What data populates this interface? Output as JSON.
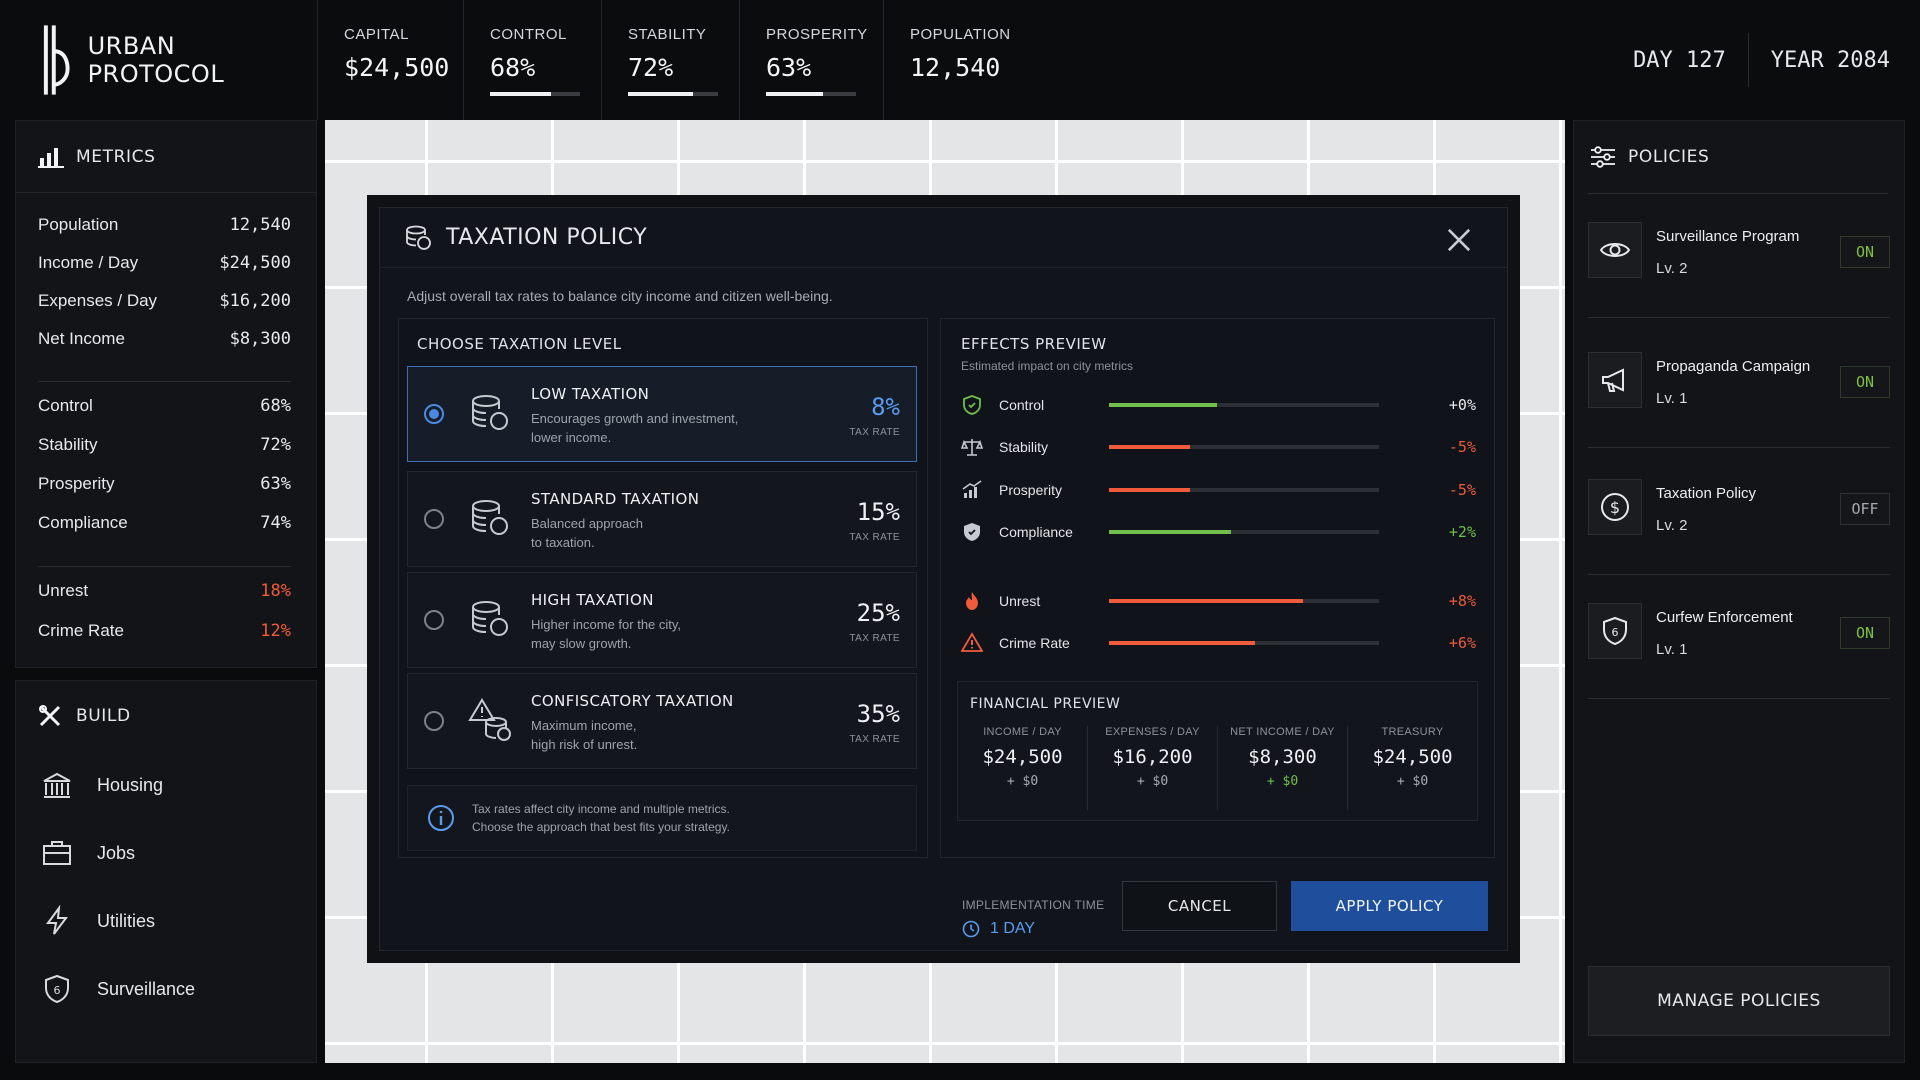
{
  "app": {
    "title": "URBAN PROTOCOL",
    "logo_icon": "city-logo-icon"
  },
  "topbar": {
    "stats": [
      {
        "label": "CAPITAL",
        "value": "$24,500"
      },
      {
        "label": "CONTROL",
        "value": "68%",
        "level": 0.68
      },
      {
        "label": "STABILITY",
        "value": "72%",
        "level": 0.72
      },
      {
        "label": "PROSPERITY",
        "value": "63%",
        "level": 0.63
      },
      {
        "label": "POPULATION",
        "value": "12,540"
      }
    ],
    "day": "DAY 127",
    "year": "YEAR 2084"
  },
  "metrics": {
    "title": "METRICS",
    "group1": [
      {
        "label": "Population",
        "value": "12,540"
      },
      {
        "label": "Income / Day",
        "value": "$24,500"
      },
      {
        "label": "Expenses / Day",
        "value": "$16,200"
      },
      {
        "label": "Net Income",
        "value": "$8,300"
      }
    ],
    "group2": [
      {
        "label": "Control",
        "value": "68%"
      },
      {
        "label": "Stability",
        "value": "72%"
      },
      {
        "label": "Prosperity",
        "value": "63%"
      },
      {
        "label": "Compliance",
        "value": "74%"
      }
    ],
    "group3": [
      {
        "label": "Unrest",
        "value": "18%"
      },
      {
        "label": "Crime Rate",
        "value": "12%"
      }
    ]
  },
  "build": {
    "title": "BUILD",
    "items": [
      {
        "label": "Housing",
        "icon": "building-icon"
      },
      {
        "label": "Jobs",
        "icon": "briefcase-icon"
      },
      {
        "label": "Utilities",
        "icon": "lightning-icon"
      },
      {
        "label": "Surveillance",
        "icon": "shield-icon"
      }
    ]
  },
  "modal": {
    "title": "TAXATION POLICY",
    "subtitle": "Adjust overall tax rates to balance city income and citizen well-being.",
    "choose_title": "CHOOSE TAXATION LEVEL",
    "options": [
      {
        "name": "LOW TAXATION",
        "desc1": "Encourages growth and investment,",
        "desc2": "lower income.",
        "rate": "8%",
        "rate_label": "TAX RATE",
        "selected": true
      },
      {
        "name": "STANDARD TAXATION",
        "desc1": "Balanced approach",
        "desc2": "to taxation.",
        "rate": "15%",
        "rate_label": "TAX RATE",
        "selected": false
      },
      {
        "name": "HIGH TAXATION",
        "desc1": "Higher income for the city,",
        "desc2": "may slow growth.",
        "rate": "25%",
        "rate_label": "TAX RATE",
        "selected": false
      },
      {
        "name": "CONFISCATORY TAXATION",
        "desc1": "Maximum income,",
        "desc2": "high risk of unrest.",
        "rate": "35%",
        "rate_label": "TAX RATE",
        "selected": false
      }
    ],
    "info1": "Tax rates affect city income and multiple metrics.",
    "info2": "Choose the approach that best fits your strategy.",
    "effects_title": "EFFECTS PREVIEW",
    "effects_sub": "Estimated impact on city metrics",
    "effects": [
      {
        "name": "Control",
        "delta": "+0%",
        "level": 0.4,
        "color": "#6fbf4a",
        "delta_color": "#e6e8eb",
        "icon": "shield-check-icon"
      },
      {
        "name": "Stability",
        "delta": "-5%",
        "level": 0.3,
        "color": "#ef5b3b",
        "delta_color": "#ef5b3b",
        "icon": "scales-icon"
      },
      {
        "name": "Prosperity",
        "delta": "-5%",
        "level": 0.3,
        "color": "#ef5b3b",
        "delta_color": "#ef5b3b",
        "icon": "chart-up-icon"
      },
      {
        "name": "Compliance",
        "delta": "+2%",
        "level": 0.45,
        "color": "#6fbf4a",
        "delta_color": "#6fbf4a",
        "icon": "shield-filled-icon"
      },
      {
        "name": "Unrest",
        "delta": "+8%",
        "level": 0.72,
        "color": "#ef5b3b",
        "delta_color": "#ef5b3b",
        "icon": "fire-icon"
      },
      {
        "name": "Crime Rate",
        "delta": "+6%",
        "level": 0.54,
        "color": "#ef5b3b",
        "delta_color": "#ef5b3b",
        "icon": "warning-icon"
      }
    ],
    "financial_title": "FINANCIAL PREVIEW",
    "financial": [
      {
        "label": "INCOME / DAY",
        "value": "$24,500",
        "delta": "+ $0",
        "green": false
      },
      {
        "label": "EXPENSES / DAY",
        "value": "$16,200",
        "delta": "+ $0",
        "green": false
      },
      {
        "label": "NET INCOME / DAY",
        "value": "$8,300",
        "delta": "+ $0",
        "green": true
      },
      {
        "label": "TREASURY",
        "value": "$24,500",
        "delta": "+ $0",
        "green": false
      }
    ],
    "impl_label": "IMPLEMENTATION TIME",
    "impl_value": "1 DAY",
    "cancel": "CANCEL",
    "apply": "APPLY POLICY"
  },
  "policies": {
    "title": "POLICIES",
    "items": [
      {
        "name": "Surveillance Program",
        "level": "Lv. 2",
        "state": "ON",
        "icon": "eye-icon"
      },
      {
        "name": "Propaganda Campaign",
        "level": "Lv. 1",
        "state": "ON",
        "icon": "megaphone-icon"
      },
      {
        "name": "Taxation Policy",
        "level": "Lv. 2",
        "state": "OFF",
        "icon": "dollar-icon"
      },
      {
        "name": "Curfew Enforcement",
        "level": "Lv. 1",
        "state": "ON",
        "icon": "shield-six-icon"
      }
    ],
    "manage": "MANAGE POLICIES"
  }
}
